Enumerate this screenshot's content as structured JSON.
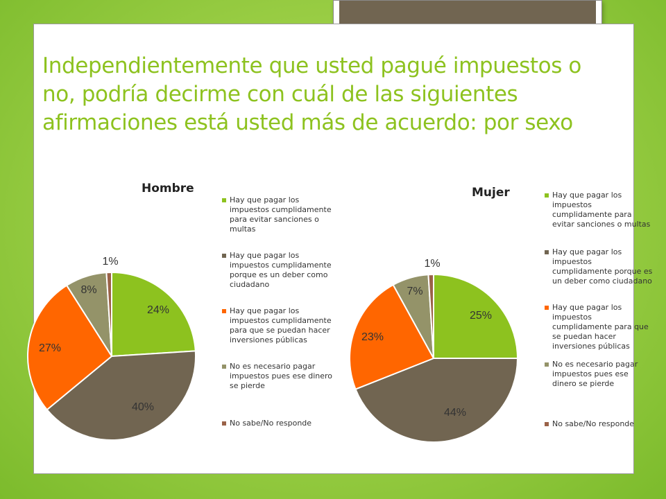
{
  "title": "Independientemente que usted pagué impuestos o no, podría decirme con cuál de las siguientes afirmaciones está usted más de acuerdo: por sexo",
  "colors": {
    "series": [
      "#8dc21f",
      "#716551",
      "#ff6600",
      "#949369",
      "#9a6248"
    ],
    "title": "#8dc21f",
    "background": "#9ed048"
  },
  "legend_items": [
    "Hay que pagar los impuestos cumplidamente para evitar sanciones o multas",
    "Hay que pagar los impuestos cumplidamente porque es un deber como ciudadano",
    "Hay que pagar los impuestos cumplidamente para que se puedan hacer inversiones públicas",
    "No es necesario pagar impuestos pues ese dinero se pierde",
    "No sabe/No responde"
  ],
  "chart_data": [
    {
      "type": "pie",
      "title": "Hombre",
      "categories": [
        "Hay que pagar los impuestos cumplidamente para evitar sanciones o multas",
        "Hay que pagar los impuestos cumplidamente porque es un deber como ciudadano",
        "Hay que pagar los impuestos cumplidamente para que se puedan hacer inversiones públicas",
        "No es necesario pagar impuestos pues ese dinero se pierde",
        "No sabe/No responde"
      ],
      "values": [
        24,
        40,
        27,
        8,
        1
      ],
      "labels": [
        "24%",
        "40%",
        "27%",
        "8%",
        "1%"
      ],
      "legend_position": "right"
    },
    {
      "type": "pie",
      "title": "Mujer",
      "categories": [
        "Hay que pagar los impuestos cumplidamente para evitar sanciones o multas",
        "Hay que pagar los impuestos cumplidamente porque es un deber como ciudadano",
        "Hay que pagar los impuestos cumplidamente para que se puedan hacer inversiones públicas",
        "No es necesario pagar impuestos pues ese dinero se pierde",
        "No sabe/No responde"
      ],
      "values": [
        25,
        44,
        23,
        7,
        1
      ],
      "labels": [
        "25%",
        "44%",
        "23%",
        "7%",
        "1%"
      ],
      "legend_position": "right"
    }
  ]
}
